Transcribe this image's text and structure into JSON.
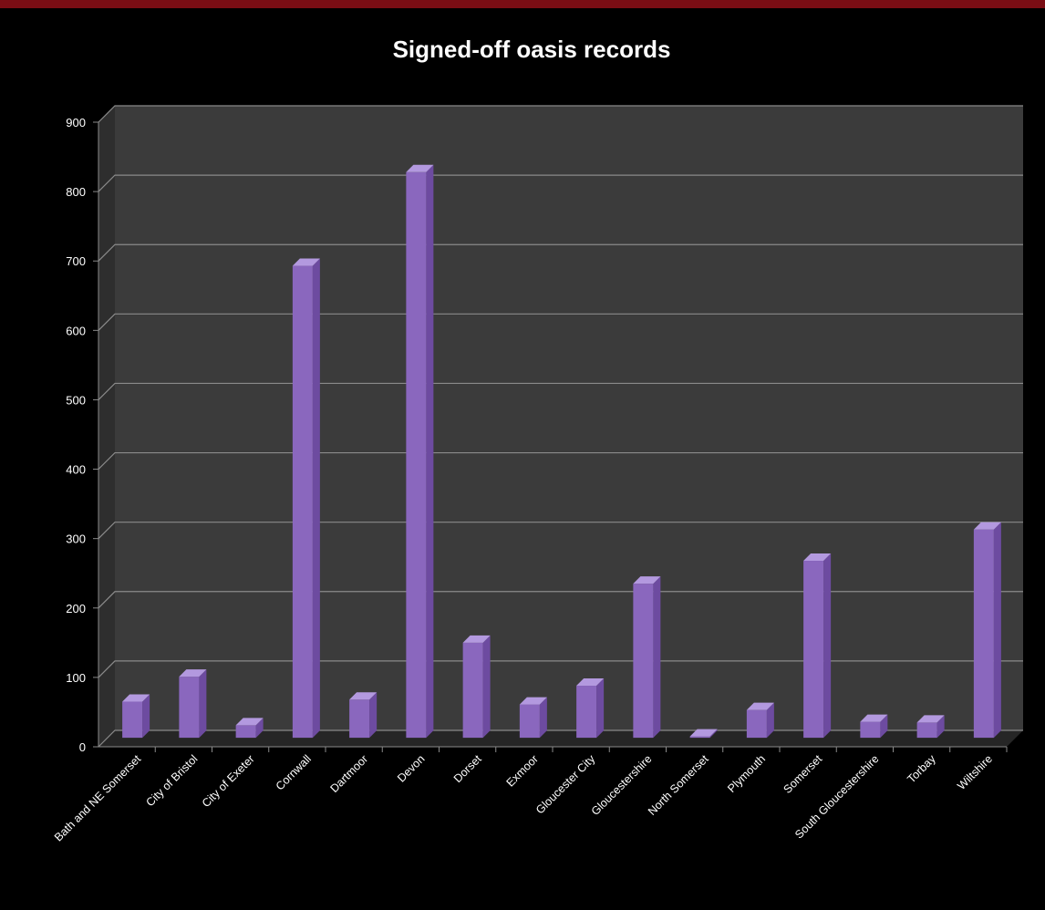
{
  "chart_data": {
    "type": "bar",
    "title": "Signed-off oasis records",
    "xlabel": "",
    "ylabel": "",
    "ylim": [
      0,
      900
    ],
    "yticks": [
      0,
      100,
      200,
      300,
      400,
      500,
      600,
      700,
      800,
      900
    ],
    "grid": true,
    "legend": "none",
    "categories": [
      "Bath and NE Somerset",
      "City of Bristol",
      "City of Exeter",
      "Cornwall",
      "Dartmoor",
      "Devon",
      "Dorset",
      "Exmoor",
      "Gloucester City",
      "Gloucestershire",
      "North Somerset",
      "Plymouth",
      "Somerset",
      "South Gloucestershire",
      "Torbay",
      "Wiltshire"
    ],
    "values": [
      52,
      88,
      18,
      680,
      55,
      815,
      137,
      48,
      75,
      222,
      2,
      40,
      255,
      23,
      22,
      300
    ]
  },
  "colors": {
    "background": "#000000",
    "top_border": "#7a0d14",
    "plot_back": "#3b3b3b",
    "side_wall": "#2e2e2e",
    "floor": "#262626",
    "gridline": "#8a8a8a",
    "bar_front": "#8a67be",
    "bar_top": "#b399df",
    "bar_side": "#6d4ba0",
    "text": "#ffffff"
  }
}
